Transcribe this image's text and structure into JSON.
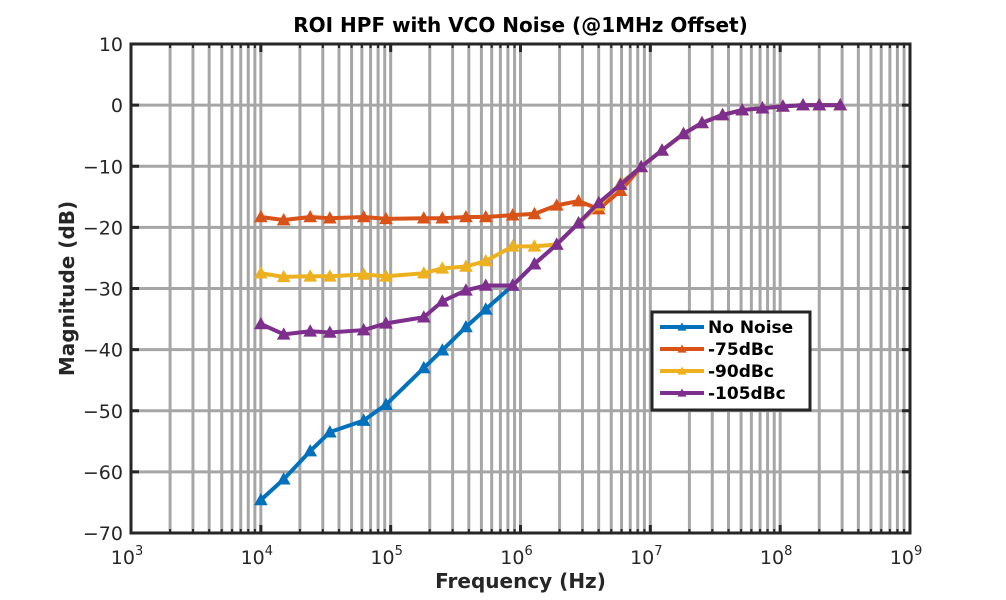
{
  "chart_data": {
    "type": "line",
    "title": "ROI HPF with VCO Noise (@1MHz Offset)",
    "xlabel": "Frequency (Hz)",
    "ylabel": "Magnitude (dB)",
    "xscale": "log",
    "xlim": [
      1000,
      1000000000
    ],
    "ylim": [
      -70,
      10
    ],
    "grid": true,
    "legend_position": "center-right",
    "x_ticks": [
      {
        "base": "10",
        "exp": "3",
        "value": 1000
      },
      {
        "base": "10",
        "exp": "4",
        "value": 10000
      },
      {
        "base": "10",
        "exp": "5",
        "value": 100000
      },
      {
        "base": "10",
        "exp": "6",
        "value": 1000000
      },
      {
        "base": "10",
        "exp": "7",
        "value": 10000000
      },
      {
        "base": "10",
        "exp": "8",
        "value": 100000000
      },
      {
        "base": "10",
        "exp": "9",
        "value": 1000000000
      }
    ],
    "y_ticks": [
      {
        "label": "10",
        "value": 10
      },
      {
        "label": "0",
        "value": 0
      },
      {
        "label": "−10",
        "value": -10
      },
      {
        "label": "−20",
        "value": -20
      },
      {
        "label": "−30",
        "value": -30
      },
      {
        "label": "−40",
        "value": -40
      },
      {
        "label": "−50",
        "value": -50
      },
      {
        "label": "−60",
        "value": -60
      },
      {
        "label": "−70",
        "value": -70
      }
    ],
    "x": [
      10000,
      15000,
      24000,
      34000,
      62000,
      92000,
      180000,
      250000,
      380000,
      540000,
      870000,
      1280000,
      1900000,
      2800000,
      4000000,
      5900000,
      8500000,
      12300000,
      18000000,
      25000000,
      36000000,
      51000000,
      73000000,
      105000000,
      150000000,
      200000000,
      290000000
    ],
    "series": [
      {
        "name": "No Noise",
        "color": "#0072BD",
        "values": [
          -64.6,
          -61.2,
          -56.6,
          -53.5,
          -51.6,
          -49.0,
          -43.0,
          -40.1,
          -36.3,
          -33.4,
          -29.5,
          -26.0,
          -22.8,
          -19.3,
          -16.4,
          -12.8,
          -10.1,
          -7.4,
          -4.7,
          -2.9,
          -1.6,
          -0.8,
          -0.5,
          -0.2,
          0,
          0,
          0
        ]
      },
      {
        "name": "-75dBc",
        "color": "#D95319",
        "values": [
          -18.3,
          -18.8,
          -18.3,
          -18.5,
          -18.3,
          -18.6,
          -18.5,
          -18.5,
          -18.3,
          -18.3,
          -18.0,
          -17.8,
          -16.4,
          -15.7,
          -17.0,
          -14.0,
          -10.1,
          -7.4,
          -4.7,
          -2.9,
          -1.6,
          -0.8,
          -0.5,
          -0.2,
          0,
          0,
          0
        ]
      },
      {
        "name": "-90dBc",
        "color": "#EDB120",
        "values": [
          -27.5,
          -28.1,
          -28.0,
          -28.0,
          -27.7,
          -28.0,
          -27.5,
          -26.7,
          -26.4,
          -25.5,
          -23.1,
          -23.1,
          -22.8,
          -19.3,
          -16.4,
          -12.8,
          -10.1,
          -7.4,
          -4.7,
          -2.9,
          -1.6,
          -0.8,
          -0.5,
          -0.2,
          0,
          0,
          0
        ]
      },
      {
        "name": "-105dBc",
        "color": "#7E2F8E",
        "values": [
          -35.8,
          -37.5,
          -37.0,
          -37.2,
          -36.8,
          -35.7,
          -34.7,
          -32.1,
          -30.3,
          -29.5,
          -29.5,
          -26.0,
          -22.8,
          -19.3,
          -16.0,
          -13.0,
          -10.1,
          -7.4,
          -4.7,
          -2.9,
          -1.6,
          -0.8,
          -0.5,
          -0.2,
          0,
          0,
          0
        ]
      }
    ]
  }
}
